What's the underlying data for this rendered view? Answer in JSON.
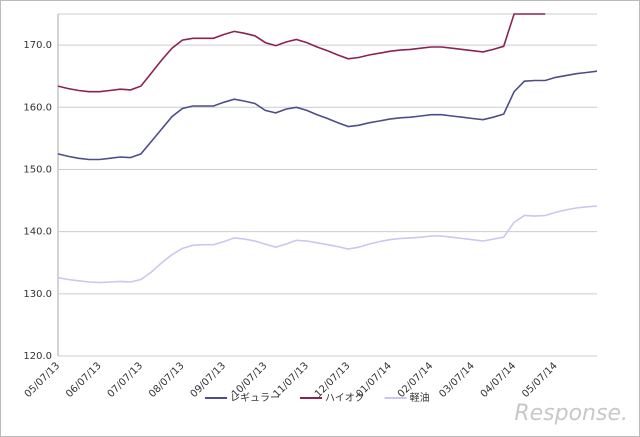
{
  "chart_data": {
    "type": "line",
    "categories": [
      "05/07/13",
      null,
      null,
      null,
      "06/07/13",
      null,
      null,
      null,
      "07/07/13",
      null,
      null,
      null,
      "08/07/13",
      null,
      null,
      null,
      "09/07/13",
      null,
      null,
      null,
      "10/07/13",
      null,
      null,
      null,
      "11/07/13",
      null,
      null,
      null,
      "12/07/13",
      null,
      null,
      null,
      "01/07/14",
      null,
      null,
      null,
      "02/07/14",
      null,
      null,
      null,
      "03/07/14",
      null,
      null,
      null,
      "04/07/14",
      null,
      null,
      null,
      "05/07/14",
      null,
      null,
      null,
      null
    ],
    "series": [
      {
        "name": "レギュラー",
        "color": "#4d4d8c",
        "values": [
          152.5,
          152.1,
          151.8,
          151.6,
          151.6,
          151.8,
          152.0,
          151.9,
          152.5,
          154.5,
          156.5,
          158.5,
          159.8,
          160.2,
          160.2,
          160.2,
          160.8,
          161.3,
          161.0,
          160.6,
          159.5,
          159.1,
          159.7,
          160.0,
          159.5,
          158.8,
          158.2,
          157.5,
          156.9,
          157.1,
          157.5,
          157.8,
          158.1,
          158.3,
          158.4,
          158.6,
          158.8,
          158.8,
          158.6,
          158.4,
          158.2,
          158.0,
          158.4,
          158.9,
          162.5,
          164.2,
          164.3,
          164.3,
          164.8,
          165.1,
          165.4,
          165.6,
          165.8
        ]
      },
      {
        "name": "ハイオク",
        "color": "#8b2252",
        "values": [
          163.4,
          163.0,
          162.7,
          162.5,
          162.5,
          162.7,
          162.9,
          162.8,
          163.4,
          165.5,
          167.6,
          169.5,
          170.8,
          171.1,
          171.1,
          171.1,
          171.7,
          172.2,
          171.9,
          171.5,
          170.4,
          169.9,
          170.5,
          170.9,
          170.4,
          169.7,
          169.1,
          168.4,
          167.8,
          168.0,
          168.4,
          168.7,
          169.0,
          169.2,
          169.3,
          169.5,
          169.7,
          169.7,
          169.5,
          169.3,
          169.1,
          168.9,
          169.3,
          169.8,
          175.0,
          175.0,
          175.0,
          175.0,
          null,
          null,
          null,
          null,
          null
        ]
      },
      {
        "name": "軽油",
        "color": "#c8c8f0",
        "values": [
          132.6,
          132.3,
          132.1,
          131.9,
          131.8,
          131.9,
          132.0,
          131.9,
          132.3,
          133.5,
          135.0,
          136.3,
          137.3,
          137.8,
          137.9,
          137.9,
          138.4,
          139.0,
          138.8,
          138.5,
          138.0,
          137.5,
          138.0,
          138.6,
          138.5,
          138.2,
          137.9,
          137.6,
          137.2,
          137.5,
          138.0,
          138.4,
          138.7,
          138.9,
          139.0,
          139.1,
          139.3,
          139.3,
          139.1,
          138.9,
          138.7,
          138.5,
          138.8,
          139.1,
          141.5,
          142.6,
          142.5,
          142.6,
          143.1,
          143.5,
          143.8,
          144.0,
          144.1
        ]
      }
    ],
    "ylim": [
      120,
      175
    ],
    "yticks": [
      {
        "value": 120,
        "label": "120.0"
      },
      {
        "value": 130,
        "label": "130.0"
      },
      {
        "value": 140,
        "label": "140.0"
      },
      {
        "value": 150,
        "label": "150.0"
      },
      {
        "value": 160,
        "label": "160.0"
      },
      {
        "value": 170,
        "label": "170.0"
      }
    ],
    "grid": true,
    "legend": "bottom"
  },
  "watermark": "Response."
}
